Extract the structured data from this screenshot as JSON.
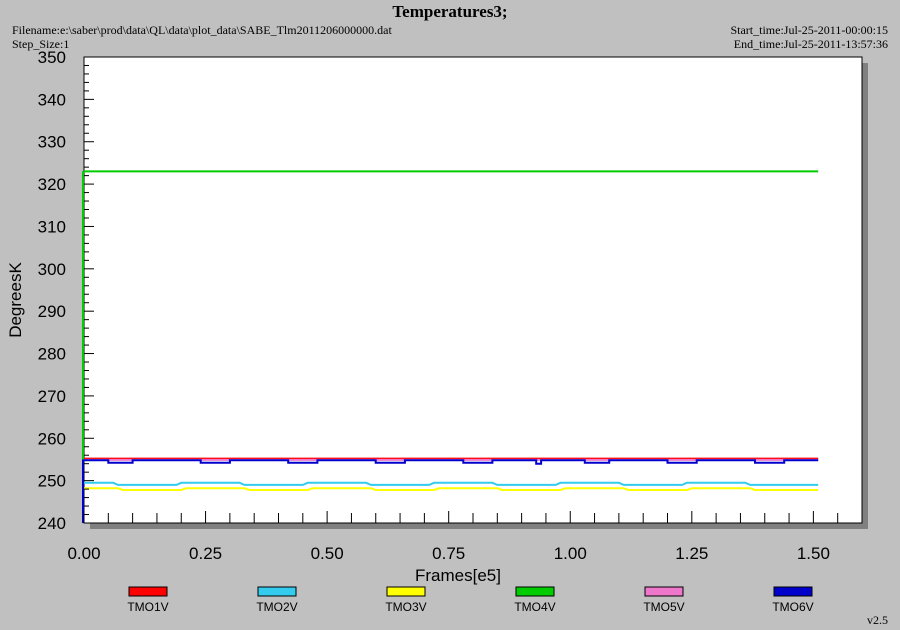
{
  "header": {
    "title": "Temperatures3;",
    "filename": "Filename:e:\\saber\\prod\\data\\QL\\data\\plot_data\\SABE_Tlm2011206000000.dat",
    "step_size": "Step_Size:1",
    "start_time": "Start_time:Jul-25-2011-00:00:15",
    "end_time": "End_time:Jul-25-2011-13:57:36"
  },
  "version": "v2.5",
  "chart_data": {
    "type": "line",
    "title": "Temperatures3;",
    "xlabel": "Frames[e5]",
    "ylabel": "DegreesK",
    "xlim": [
      0,
      1.6
    ],
    "ylim": [
      240,
      350
    ],
    "x_ticks": [
      0.0,
      0.25,
      0.5,
      0.75,
      1.0,
      1.25,
      1.5
    ],
    "x_tick_labels": [
      "0.00",
      "0.25",
      "0.50",
      "0.75",
      "1.00",
      "1.25",
      "1.50"
    ],
    "y_ticks": [
      240,
      250,
      260,
      270,
      280,
      290,
      300,
      310,
      320,
      330,
      340,
      350
    ],
    "y_tick_labels": [
      "240",
      "250",
      "260",
      "270",
      "280",
      "290",
      "300",
      "310",
      "320",
      "330",
      "340",
      "350"
    ],
    "grid": false,
    "legend_position": "bottom",
    "series": [
      {
        "name": "TMO1V",
        "color": "#ff0000",
        "x": [
          0.0,
          1.51
        ],
        "y": [
          255.2,
          255.2
        ]
      },
      {
        "name": "TMO2V",
        "color": "#33ccee",
        "x": [
          0.0,
          0.06,
          0.07,
          0.19,
          0.2,
          0.32,
          0.33,
          0.45,
          0.46,
          0.58,
          0.59,
          0.71,
          0.72,
          0.84,
          0.85,
          0.97,
          0.98,
          1.1,
          1.11,
          1.23,
          1.24,
          1.36,
          1.37,
          1.51
        ],
        "y": [
          249.5,
          249.5,
          249.0,
          249.0,
          249.5,
          249.5,
          249.0,
          249.0,
          249.5,
          249.5,
          249.0,
          249.0,
          249.5,
          249.5,
          249.0,
          249.0,
          249.5,
          249.5,
          249.0,
          249.0,
          249.5,
          249.5,
          249.0,
          249.0
        ]
      },
      {
        "name": "TMO3V",
        "color": "#ffff00",
        "x": [
          0.0,
          0.07,
          0.08,
          0.2,
          0.21,
          0.33,
          0.34,
          0.46,
          0.47,
          0.59,
          0.6,
          0.72,
          0.73,
          0.85,
          0.86,
          0.98,
          0.99,
          1.11,
          1.12,
          1.24,
          1.25,
          1.37,
          1.38,
          1.51
        ],
        "y": [
          248.2,
          248.2,
          247.8,
          247.8,
          248.2,
          248.2,
          247.8,
          247.8,
          248.2,
          248.2,
          247.8,
          247.8,
          248.2,
          248.2,
          247.8,
          247.8,
          248.2,
          248.2,
          247.8,
          247.8,
          248.2,
          248.2,
          247.8,
          247.8
        ]
      },
      {
        "name": "TMO4V",
        "color": "#00cc00",
        "x": [
          0.0,
          1.51
        ],
        "y": [
          323.0,
          323.0
        ]
      },
      {
        "name": "TMO5V",
        "color": "#ee77cc",
        "x": [
          0.0,
          1.51
        ],
        "y": [
          254.9,
          254.9
        ]
      },
      {
        "name": "TMO6V",
        "color": "#0000cc",
        "x": [
          0.0,
          0.05,
          0.05,
          0.1,
          0.1,
          0.24,
          0.24,
          0.3,
          0.3,
          0.42,
          0.42,
          0.48,
          0.48,
          0.6,
          0.6,
          0.66,
          0.66,
          0.78,
          0.78,
          0.84,
          0.84,
          0.93,
          0.93,
          0.94,
          0.94,
          1.03,
          1.03,
          1.08,
          1.08,
          1.2,
          1.2,
          1.26,
          1.26,
          1.38,
          1.38,
          1.44,
          1.44,
          1.51
        ],
        "y": [
          254.8,
          254.8,
          254.2,
          254.2,
          254.8,
          254.8,
          254.2,
          254.2,
          254.8,
          254.8,
          254.2,
          254.2,
          254.8,
          254.8,
          254.2,
          254.2,
          254.8,
          254.8,
          254.2,
          254.2,
          254.8,
          254.8,
          254.0,
          254.0,
          254.8,
          254.8,
          254.2,
          254.2,
          254.8,
          254.8,
          254.2,
          254.2,
          254.8,
          254.8,
          254.2,
          254.2,
          254.8,
          254.8
        ]
      }
    ]
  }
}
